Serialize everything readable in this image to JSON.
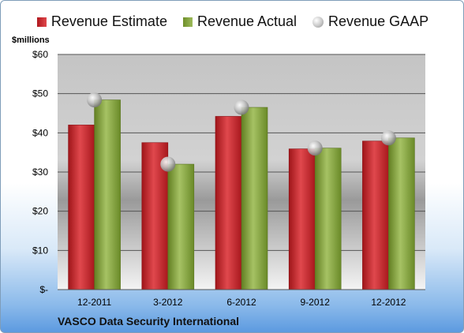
{
  "chart_data": {
    "type": "bar",
    "categories": [
      "12-2011",
      "3-2012",
      "6-2012",
      "9-2012",
      "12-2012"
    ],
    "series": [
      {
        "name": "Revenue Estimate",
        "type": "bar",
        "values": [
          42.0,
          37.5,
          44.2,
          35.9,
          37.9
        ]
      },
      {
        "name": "Revenue Actual",
        "type": "bar",
        "values": [
          48.4,
          32.0,
          46.5,
          36.1,
          38.7
        ]
      },
      {
        "name": "Revenue GAAP",
        "type": "scatter",
        "values": [
          48.4,
          32.0,
          46.5,
          36.1,
          38.7
        ]
      }
    ],
    "ylabel": "$millions",
    "ylim": [
      0,
      60
    ],
    "yticks": [
      0,
      10,
      20,
      30,
      40,
      50,
      60
    ],
    "ytick_labels": [
      "$-",
      "$10",
      "$20",
      "$30",
      "$40",
      "$50",
      "$60"
    ],
    "grid": true,
    "legend_position": "top",
    "colors": {
      "estimate": "#c0282d",
      "actual": "#86a843",
      "gaap": "#b8b8b8"
    }
  },
  "company": "VASCO Data Security International"
}
